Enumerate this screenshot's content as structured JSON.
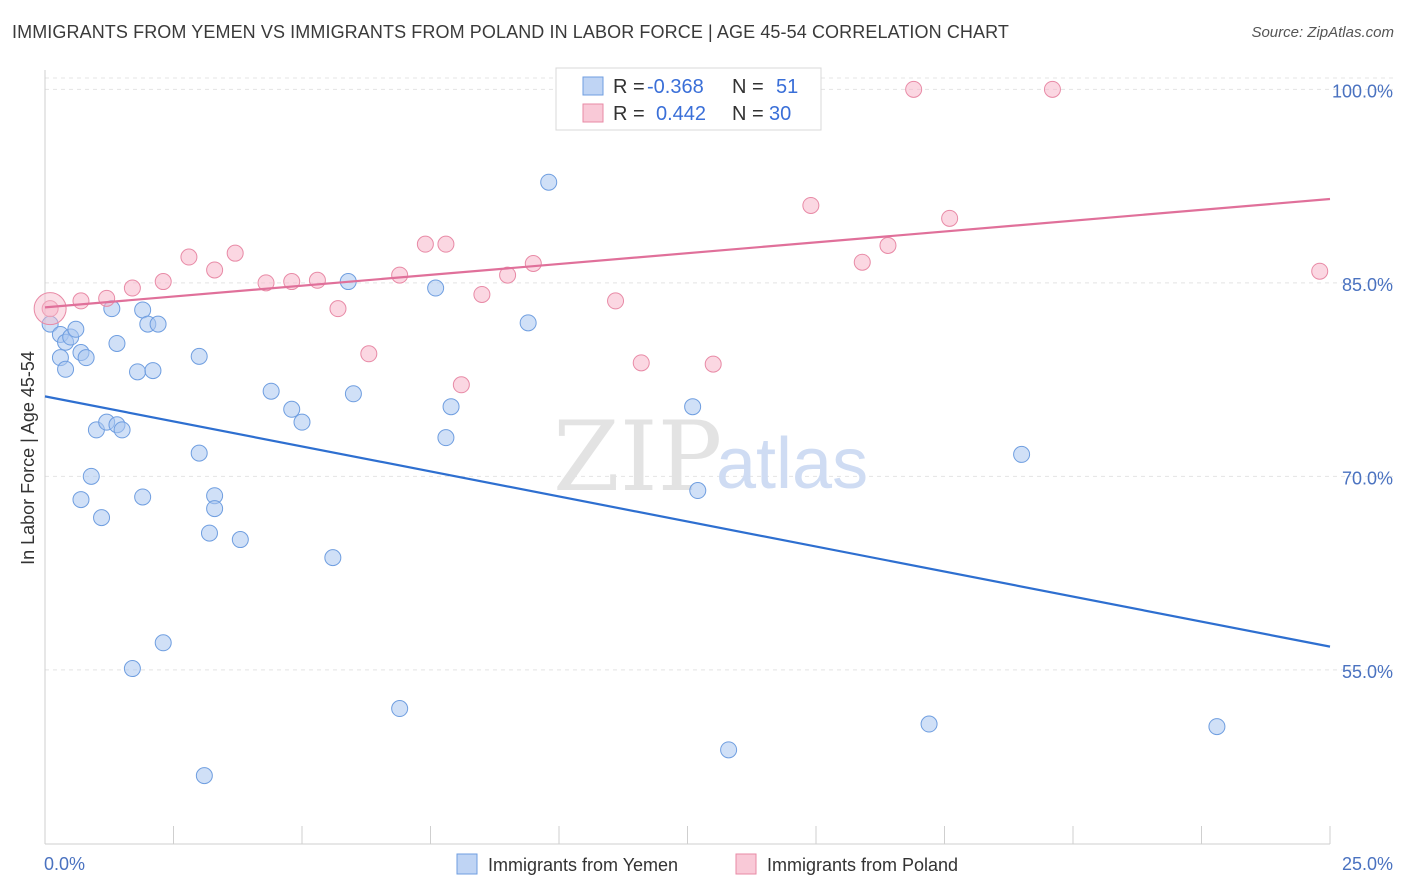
{
  "title": "IMMIGRANTS FROM YEMEN VS IMMIGRANTS FROM POLAND IN LABOR FORCE | AGE 45-54 CORRELATION CHART",
  "source": "Source: ZipAtlas.com",
  "watermark": {
    "zip": "ZIP",
    "atlas": "atlas"
  },
  "legend_box": {
    "rows": [
      {
        "r_label": "R =",
        "r_value": "-0.368",
        "n_label": "N =",
        "n_value": "51",
        "color": "#a9c6f0"
      },
      {
        "r_label": "R =",
        "r_value": "0.442",
        "n_label": "N =",
        "n_value": "30",
        "color": "#f7b7ca"
      }
    ]
  },
  "chart_data": {
    "type": "scatter",
    "title": "IMMIGRANTS FROM YEMEN VS IMMIGRANTS FROM POLAND IN LABOR FORCE | AGE 45-54 CORRELATION CHART",
    "xlabel": "",
    "ylabel": "In Labor Force | Age 45-54",
    "xlim": [
      0,
      25
    ],
    "ylim": [
      41.5,
      101.5
    ],
    "x_tick_labels": [
      "0.0%",
      "25.0%"
    ],
    "y_ticks": [
      55,
      70,
      85,
      100
    ],
    "y_tick_labels": [
      "55.0%",
      "70.0%",
      "85.0%",
      "100.0%"
    ],
    "grid": true,
    "legend_position": "bottom-center",
    "series": [
      {
        "name": "Immigrants from Yemen",
        "color": "#a9c6f0",
        "stroke": "#6f9ee0",
        "trend_color": "#2e6fd0",
        "trend": {
          "x": [
            0,
            25
          ],
          "y": [
            76.2,
            56.8
          ]
        },
        "points": [
          [
            0.1,
            81.8
          ],
          [
            0.3,
            81.0
          ],
          [
            0.3,
            79.2
          ],
          [
            0.4,
            80.4
          ],
          [
            0.4,
            78.3
          ],
          [
            0.5,
            80.8
          ],
          [
            0.6,
            81.4
          ],
          [
            0.7,
            79.6
          ],
          [
            0.7,
            68.2
          ],
          [
            0.8,
            79.2
          ],
          [
            0.9,
            70.0
          ],
          [
            1.0,
            73.6
          ],
          [
            1.1,
            66.8
          ],
          [
            1.2,
            74.2
          ],
          [
            1.3,
            83.0
          ],
          [
            1.4,
            74.0
          ],
          [
            1.4,
            80.3
          ],
          [
            1.5,
            73.6
          ],
          [
            1.7,
            55.1
          ],
          [
            1.8,
            78.1
          ],
          [
            1.9,
            68.4
          ],
          [
            1.9,
            82.9
          ],
          [
            2.0,
            81.8
          ],
          [
            2.1,
            78.2
          ],
          [
            2.2,
            81.8
          ],
          [
            2.3,
            57.1
          ],
          [
            3.0,
            71.8
          ],
          [
            3.0,
            79.3
          ],
          [
            3.1,
            46.8
          ],
          [
            3.2,
            65.6
          ],
          [
            3.3,
            68.5
          ],
          [
            3.3,
            67.5
          ],
          [
            3.8,
            65.1
          ],
          [
            4.4,
            76.6
          ],
          [
            4.8,
            75.2
          ],
          [
            5.0,
            74.2
          ],
          [
            5.6,
            63.7
          ],
          [
            5.9,
            85.1
          ],
          [
            6.0,
            76.4
          ],
          [
            6.9,
            52.0
          ],
          [
            7.6,
            84.6
          ],
          [
            7.8,
            73.0
          ],
          [
            7.9,
            75.4
          ],
          [
            9.4,
            81.9
          ],
          [
            9.8,
            92.8
          ],
          [
            12.6,
            75.4
          ],
          [
            12.7,
            68.9
          ],
          [
            13.3,
            48.8
          ],
          [
            17.2,
            50.8
          ],
          [
            19.0,
            71.7
          ],
          [
            22.8,
            50.6
          ]
        ]
      },
      {
        "name": "Immigrants from Poland",
        "color": "#f7b7ca",
        "stroke": "#e88aa6",
        "trend_color": "#e0709a",
        "trend": {
          "x": [
            0,
            25
          ],
          "y": [
            83.1,
            91.5
          ]
        },
        "points": [
          [
            0.1,
            83.0
          ],
          [
            0.7,
            83.6
          ],
          [
            1.2,
            83.8
          ],
          [
            1.7,
            84.6
          ],
          [
            2.3,
            85.1
          ],
          [
            2.8,
            87.0
          ],
          [
            3.3,
            86.0
          ],
          [
            3.7,
            87.3
          ],
          [
            4.3,
            85.0
          ],
          [
            4.8,
            85.1
          ],
          [
            5.3,
            85.2
          ],
          [
            5.7,
            83.0
          ],
          [
            6.3,
            79.5
          ],
          [
            6.9,
            85.6
          ],
          [
            7.4,
            88.0
          ],
          [
            7.8,
            88.0
          ],
          [
            8.1,
            77.1
          ],
          [
            8.5,
            84.1
          ],
          [
            9.0,
            85.6
          ],
          [
            9.5,
            86.5
          ],
          [
            11.1,
            83.6
          ],
          [
            11.6,
            78.8
          ],
          [
            13.0,
            78.7
          ],
          [
            14.9,
            91.0
          ],
          [
            15.9,
            86.6
          ],
          [
            16.4,
            87.9
          ],
          [
            16.9,
            100.0
          ],
          [
            17.6,
            90.0
          ],
          [
            19.6,
            100.0
          ],
          [
            24.8,
            85.9
          ]
        ]
      }
    ]
  }
}
